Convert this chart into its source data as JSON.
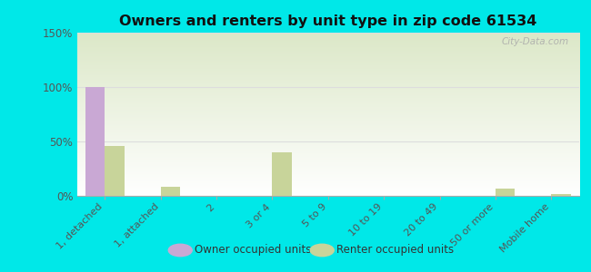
{
  "title": "Owners and renters by unit type in zip code 61534",
  "categories": [
    "1, detached",
    "1, attached",
    "2",
    "3 or 4",
    "5 to 9",
    "10 to 19",
    "20 to 49",
    "50 or more",
    "Mobile home"
  ],
  "owner_values": [
    100,
    0,
    0,
    0,
    0,
    0,
    0,
    0,
    0
  ],
  "renter_values": [
    46,
    8,
    0,
    40,
    0,
    0,
    0,
    7,
    2
  ],
  "owner_color": "#c9a8d4",
  "renter_color": "#c8d49a",
  "background_color": "#00e8e8",
  "grad_top": "#ffffff",
  "grad_bottom": "#dce8c8",
  "ylim": [
    0,
    150
  ],
  "yticks": [
    0,
    50,
    100,
    150
  ],
  "ytick_labels": [
    "0%",
    "50%",
    "100%",
    "150%"
  ],
  "bar_width": 0.35,
  "legend_labels": [
    "Owner occupied units",
    "Renter occupied units"
  ],
  "watermark": "City-Data.com"
}
